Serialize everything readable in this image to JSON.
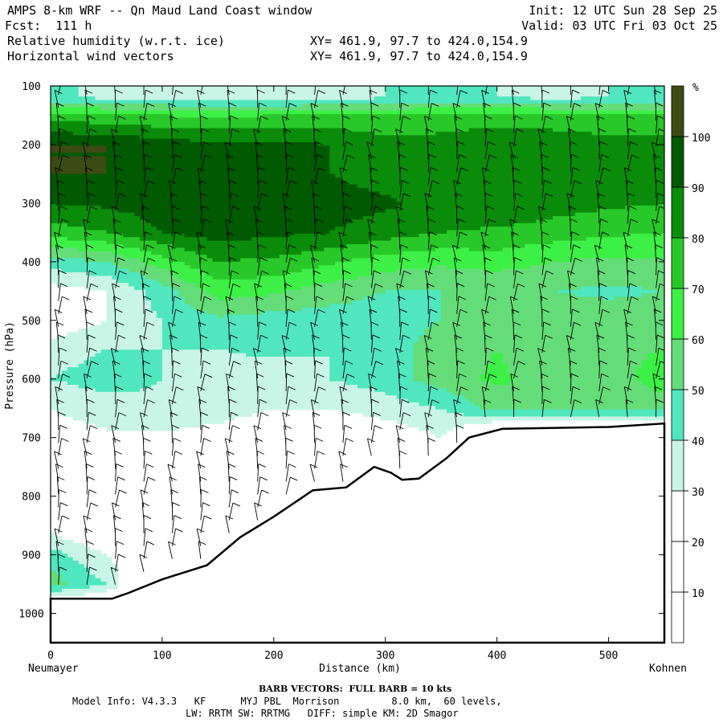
{
  "header": {
    "title": "AMPS 8-km WRF -- Qn Maud Land Coast window",
    "forecast": "Fcst:  111 h",
    "field1": "Relative humidity (w.r.t. ice)",
    "field2": "Horizontal wind vectors",
    "xy1": "XY= 461.9, 97.7 to 424.0,154.9",
    "xy2": "XY= 461.9, 97.7 to 424.0,154.9",
    "init": "Init: 12 UTC Sun 28 Sep 25",
    "valid": "Valid: 03 UTC Fri 03 Oct 25"
  },
  "footer": {
    "barb_title": "BARB VECTORS:  FULL BARB = 10 kts",
    "model_info": "Model Info: V4.3.3   KF      MYJ PBL  Morrison         8.0 km,  60 levels,",
    "model_info2": "LW: RRTM SW: RRTMG   DIFF: simple KM: 2D Smagor"
  },
  "chart_data": {
    "type": "heatmap",
    "title": "Relative humidity (w.r.t. ice)",
    "xlabel": "Distance (km)",
    "ylabel": "Pressure (hPa)",
    "xlim": [
      0,
      550
    ],
    "ylim": [
      1050,
      100
    ],
    "x_ticks": [
      0,
      100,
      200,
      300,
      400,
      500
    ],
    "y_ticks": [
      100,
      200,
      300,
      400,
      500,
      600,
      700,
      800,
      900,
      1000
    ],
    "x_endpoints": {
      "left": "Neumayer",
      "right": "Kohnen"
    },
    "colorbar": {
      "unit": "%",
      "levels": [
        10,
        20,
        30,
        40,
        50,
        60,
        70,
        80,
        90,
        100
      ],
      "colors": [
        "#ffffff",
        "#ffffff",
        "#ffffff",
        "#c8f5e6",
        "#50e6be",
        "#64dc78",
        "#3cf046",
        "#28c828",
        "#0a8c0a",
        "#005a00",
        "#3c4b14"
      ]
    },
    "terrain_pressure": [
      [
        0,
        975
      ],
      [
        55,
        975
      ],
      [
        70,
        965
      ],
      [
        100,
        942
      ],
      [
        140,
        918
      ],
      [
        170,
        870
      ],
      [
        200,
        835
      ],
      [
        235,
        790
      ],
      [
        265,
        785
      ],
      [
        290,
        750
      ],
      [
        305,
        760
      ],
      [
        315,
        772
      ],
      [
        330,
        770
      ],
      [
        355,
        735
      ],
      [
        375,
        700
      ],
      [
        405,
        685
      ],
      [
        500,
        682
      ],
      [
        550,
        676
      ]
    ],
    "rh_profiles": {
      "x": [
        0,
        50,
        100,
        150,
        200,
        250,
        300,
        350,
        400,
        450,
        500,
        550
      ],
      "p": [
        120,
        150,
        200,
        250,
        300,
        350,
        400,
        450,
        500,
        550,
        600,
        650,
        700,
        750,
        800,
        850,
        900,
        950,
        1000
      ],
      "values": [
        [
          42,
          38,
          35,
          33,
          33,
          35,
          40,
          42,
          40,
          38,
          40,
          42
        ],
        [
          75,
          72,
          70,
          68,
          70,
          72,
          70,
          72,
          75,
          72,
          70,
          70
        ],
        [
          100,
          100,
          95,
          92,
          92,
          90,
          85,
          85,
          88,
          88,
          85,
          85
        ],
        [
          100,
          100,
          100,
          98,
          95,
          90,
          85,
          85,
          88,
          85,
          85,
          85
        ],
        [
          90,
          92,
          95,
          100,
          95,
          95,
          92,
          85,
          90,
          85,
          82,
          80
        ],
        [
          75,
          80,
          90,
          95,
          92,
          90,
          85,
          80,
          78,
          75,
          72,
          70
        ],
        [
          45,
          50,
          65,
          80,
          78,
          72,
          65,
          62,
          65,
          60,
          58,
          58
        ],
        [
          25,
          30,
          45,
          65,
          62,
          55,
          50,
          50,
          50,
          50,
          48,
          50
        ],
        [
          22,
          30,
          40,
          48,
          45,
          45,
          45,
          50,
          55,
          55,
          55,
          55
        ],
        [
          35,
          40,
          40,
          40,
          42,
          40,
          45,
          55,
          60,
          55,
          58,
          60
        ],
        [
          40,
          45,
          40,
          35,
          35,
          40,
          45,
          55,
          62,
          55,
          55,
          65
        ],
        [
          30,
          35,
          38,
          35,
          30,
          30,
          35,
          40,
          55,
          55,
          55,
          55
        ],
        [
          25,
          28,
          28,
          25,
          20,
          18,
          22,
          30,
          0,
          0,
          0,
          0
        ],
        [
          22,
          18,
          18,
          15,
          15,
          12,
          20,
          0,
          0,
          0,
          0,
          0
        ],
        [
          15,
          12,
          12,
          10,
          12,
          10,
          0,
          0,
          0,
          0,
          0,
          0
        ],
        [
          25,
          12,
          8,
          6,
          8,
          0,
          0,
          0,
          0,
          0,
          0,
          0
        ],
        [
          45,
          30,
          15,
          0,
          0,
          0,
          0,
          0,
          0,
          0,
          0,
          0
        ],
        [
          55,
          40,
          0,
          0,
          0,
          0,
          0,
          0,
          0,
          0,
          0,
          0
        ],
        [
          0,
          0,
          0,
          0,
          0,
          0,
          0,
          0,
          0,
          0,
          0,
          0
        ]
      ]
    }
  }
}
